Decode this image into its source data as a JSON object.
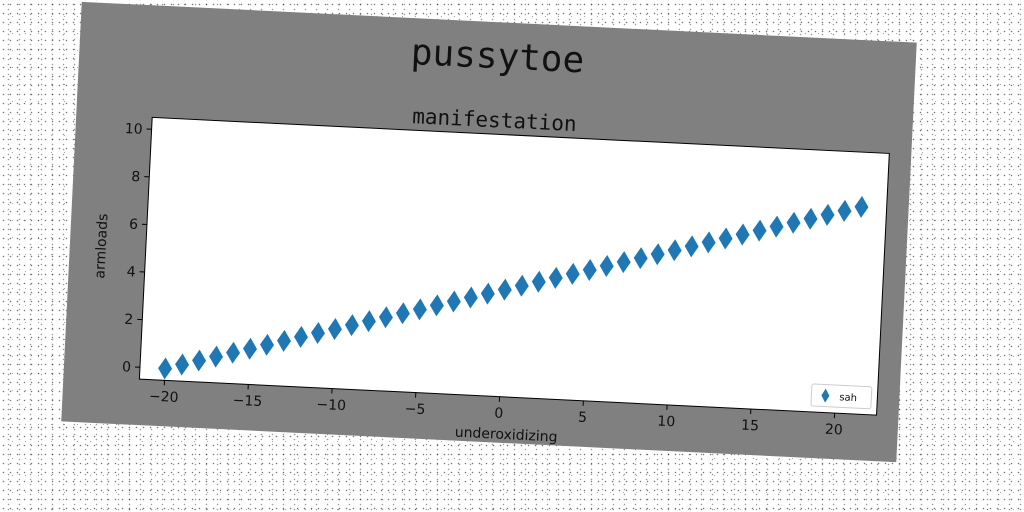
{
  "figure": {
    "title": "pussytoe",
    "background_color": "#808080"
  },
  "chart_data": {
    "type": "scatter",
    "title": "manifestation",
    "xlabel": "underoxidizing",
    "ylabel": "armloads",
    "xlim": [
      -21.5,
      22.5
    ],
    "ylim": [
      -0.5,
      10.5
    ],
    "xticks": [
      -20,
      -15,
      -10,
      -5,
      0,
      5,
      10,
      15,
      20
    ],
    "xtick_labels": [
      "−20",
      "−15",
      "−10",
      "−5",
      "0",
      "5",
      "10",
      "15",
      "20"
    ],
    "yticks": [
      0,
      2,
      4,
      6,
      8,
      10
    ],
    "ytick_labels": [
      "0",
      "2",
      "4",
      "6",
      "8",
      "10"
    ],
    "grid": false,
    "legend_position": "lower-right",
    "series": [
      {
        "name": "sah",
        "marker": "diamond",
        "color": "#1f77b4",
        "x": [
          -20,
          -19,
          -18,
          -17,
          -16,
          -15,
          -14,
          -13,
          -12,
          -11,
          -10,
          -9,
          -8,
          -7,
          -6,
          -5,
          -4,
          -3,
          -2,
          -1,
          0,
          1,
          2,
          3,
          4,
          5,
          6,
          7,
          8,
          9,
          10,
          11,
          12,
          13,
          14,
          15,
          16,
          17,
          18,
          19,
          20,
          21
        ],
        "y": [
          0,
          0.2,
          0.4,
          0.6,
          0.8,
          1,
          1.2,
          1.4,
          1.6,
          1.8,
          2,
          2.2,
          2.4,
          2.6,
          2.8,
          3,
          3.2,
          3.4,
          3.6,
          3.8,
          4,
          4.2,
          4.4,
          4.6,
          4.8,
          5,
          5.2,
          5.4,
          5.6,
          5.8,
          6,
          6.2,
          6.4,
          6.6,
          6.8,
          7,
          7.2,
          7.4,
          7.6,
          7.8,
          8,
          8.2
        ]
      }
    ]
  }
}
